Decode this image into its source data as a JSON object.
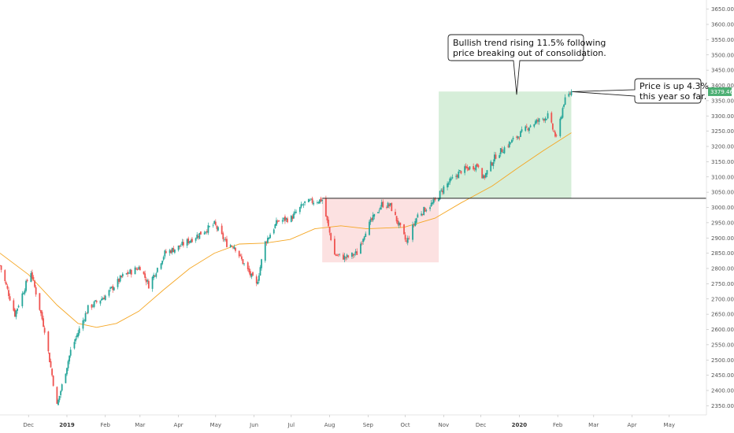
{
  "chart_data": {
    "type": "candlestick",
    "title": "",
    "y_ticks": [
      "2350.00",
      "2400.00",
      "2450.00",
      "2500.00",
      "2550.00",
      "2600.00",
      "2650.00",
      "2700.00",
      "2750.00",
      "2800.00",
      "2850.00",
      "2900.00",
      "2950.00",
      "3000.00",
      "3050.00",
      "3100.00",
      "3150.00",
      "3200.00",
      "3250.00",
      "3300.00",
      "3350.00",
      "3400.00",
      "3450.00",
      "3500.00",
      "3550.00",
      "3600.00",
      "3650.00"
    ],
    "y_tick_values": [
      2350,
      2400,
      2450,
      2500,
      2550,
      2600,
      2650,
      2700,
      2750,
      2800,
      2850,
      2900,
      2950,
      3000,
      3050,
      3100,
      3150,
      3200,
      3250,
      3300,
      3350,
      3400,
      3450,
      3500,
      3550,
      3600,
      3650
    ],
    "ylim": [
      2320,
      3680
    ],
    "x_ticks": [
      {
        "label": "Dec",
        "date": "2018-12-01",
        "bold": false
      },
      {
        "label": "2019",
        "date": "2019-01-01",
        "bold": true
      },
      {
        "label": "Feb",
        "date": "2019-02-01",
        "bold": false
      },
      {
        "label": "Mar",
        "date": "2019-03-01",
        "bold": false
      },
      {
        "label": "Apr",
        "date": "2019-04-01",
        "bold": false
      },
      {
        "label": "May",
        "date": "2019-05-01",
        "bold": false
      },
      {
        "label": "Jun",
        "date": "2019-06-01",
        "bold": false
      },
      {
        "label": "Jul",
        "date": "2019-07-01",
        "bold": false
      },
      {
        "label": "Aug",
        "date": "2019-08-01",
        "bold": false
      },
      {
        "label": "Sep",
        "date": "2019-09-01",
        "bold": false
      },
      {
        "label": "Oct",
        "date": "2019-10-01",
        "bold": false
      },
      {
        "label": "Nov",
        "date": "2019-11-01",
        "bold": false
      },
      {
        "label": "Dec",
        "date": "2019-12-01",
        "bold": false
      },
      {
        "label": "2020",
        "date": "2020-01-01",
        "bold": true
      },
      {
        "label": "Feb",
        "date": "2020-02-01",
        "bold": false
      },
      {
        "label": "Mar",
        "date": "2020-03-01",
        "bold": false
      },
      {
        "label": "Apr",
        "date": "2020-04-01",
        "bold": false
      },
      {
        "label": "May",
        "date": "2020-05-01",
        "bold": false
      }
    ],
    "xlim": [
      "2018-11-08",
      "2020-05-31"
    ],
    "price_path": [
      [
        "2018-11-08",
        2810
      ],
      [
        "2018-11-20",
        2650
      ],
      [
        "2018-11-30",
        2760
      ],
      [
        "2018-12-03",
        2790
      ],
      [
        "2018-12-14",
        2600
      ],
      [
        "2018-12-24",
        2350
      ],
      [
        "2019-01-04",
        2530
      ],
      [
        "2019-01-18",
        2670
      ],
      [
        "2019-02-01",
        2710
      ],
      [
        "2019-02-15",
        2775
      ],
      [
        "2019-03-01",
        2805
      ],
      [
        "2019-03-08",
        2745
      ],
      [
        "2019-03-21",
        2850
      ],
      [
        "2019-04-01",
        2870
      ],
      [
        "2019-04-15",
        2905
      ],
      [
        "2019-04-30",
        2945
      ],
      [
        "2019-05-10",
        2880
      ],
      [
        "2019-05-16",
        2875
      ],
      [
        "2019-05-23",
        2820
      ],
      [
        "2019-06-03",
        2745
      ],
      [
        "2019-06-10",
        2885
      ],
      [
        "2019-06-20",
        2955
      ],
      [
        "2019-07-01",
        2965
      ],
      [
        "2019-07-12",
        3015
      ],
      [
        "2019-07-26",
        3025
      ],
      [
        "2019-08-05",
        2845
      ],
      [
        "2019-08-14",
        2835
      ],
      [
        "2019-08-23",
        2850
      ],
      [
        "2019-08-30",
        2925
      ],
      [
        "2019-09-12",
        3010
      ],
      [
        "2019-09-19",
        3005
      ],
      [
        "2019-10-02",
        2885
      ],
      [
        "2019-10-11",
        2975
      ],
      [
        "2019-10-25",
        3020
      ],
      [
        "2019-11-01",
        3065
      ],
      [
        "2019-11-15",
        3120
      ],
      [
        "2019-11-29",
        3140
      ],
      [
        "2019-12-03",
        3095
      ],
      [
        "2019-12-13",
        3170
      ],
      [
        "2019-12-31",
        3235
      ],
      [
        "2020-01-10",
        3270
      ],
      [
        "2020-01-24",
        3300
      ],
      [
        "2020-01-31",
        3225
      ],
      [
        "2020-02-06",
        3345
      ],
      [
        "2020-02-12",
        3380
      ]
    ],
    "moving_average": [
      [
        "2018-11-08",
        2850
      ],
      [
        "2018-12-01",
        2780
      ],
      [
        "2018-12-24",
        2680
      ],
      [
        "2019-01-10",
        2620
      ],
      [
        "2019-01-25",
        2607
      ],
      [
        "2019-02-10",
        2620
      ],
      [
        "2019-02-28",
        2660
      ],
      [
        "2019-03-20",
        2730
      ],
      [
        "2019-04-10",
        2800
      ],
      [
        "2019-04-30",
        2850
      ],
      [
        "2019-05-20",
        2880
      ],
      [
        "2019-06-10",
        2883
      ],
      [
        "2019-06-30",
        2895
      ],
      [
        "2019-07-20",
        2930
      ],
      [
        "2019-08-10",
        2940
      ],
      [
        "2019-08-31",
        2930
      ],
      [
        "2019-09-30",
        2935
      ],
      [
        "2019-10-25",
        2965
      ],
      [
        "2019-11-15",
        3015
      ],
      [
        "2019-12-10",
        3070
      ],
      [
        "2019-12-31",
        3130
      ],
      [
        "2020-01-20",
        3185
      ],
      [
        "2020-02-12",
        3245
      ]
    ],
    "series": [
      {
        "name": "",
        "values": []
      }
    ],
    "consolidation_box": {
      "start": "2019-07-26",
      "end": "2019-10-28",
      "low": 2820,
      "high": 3030
    },
    "breakout_box": {
      "start": "2019-10-28",
      "end": "2020-02-12",
      "low": 3030,
      "high": 3380
    },
    "resistance_line": {
      "value": 3030,
      "from": "2019-07-26"
    },
    "last_price": "3379.46",
    "last_price_value": 3379.46,
    "annotations": [
      {
        "text_lines": [
          "Bullish trend rising 11.5% following",
          "price breaking out of consolidation."
        ]
      },
      {
        "text_lines": [
          "Price is up 4.3%",
          "this year so far."
        ]
      }
    ],
    "colors": {
      "up": "#26a69a",
      "down": "#ef5350",
      "ma": "#f5a623",
      "green_box": "#d4edd7",
      "red_box": "#fbdcdc",
      "price_label": "#4caf73",
      "line": "#222222"
    }
  }
}
